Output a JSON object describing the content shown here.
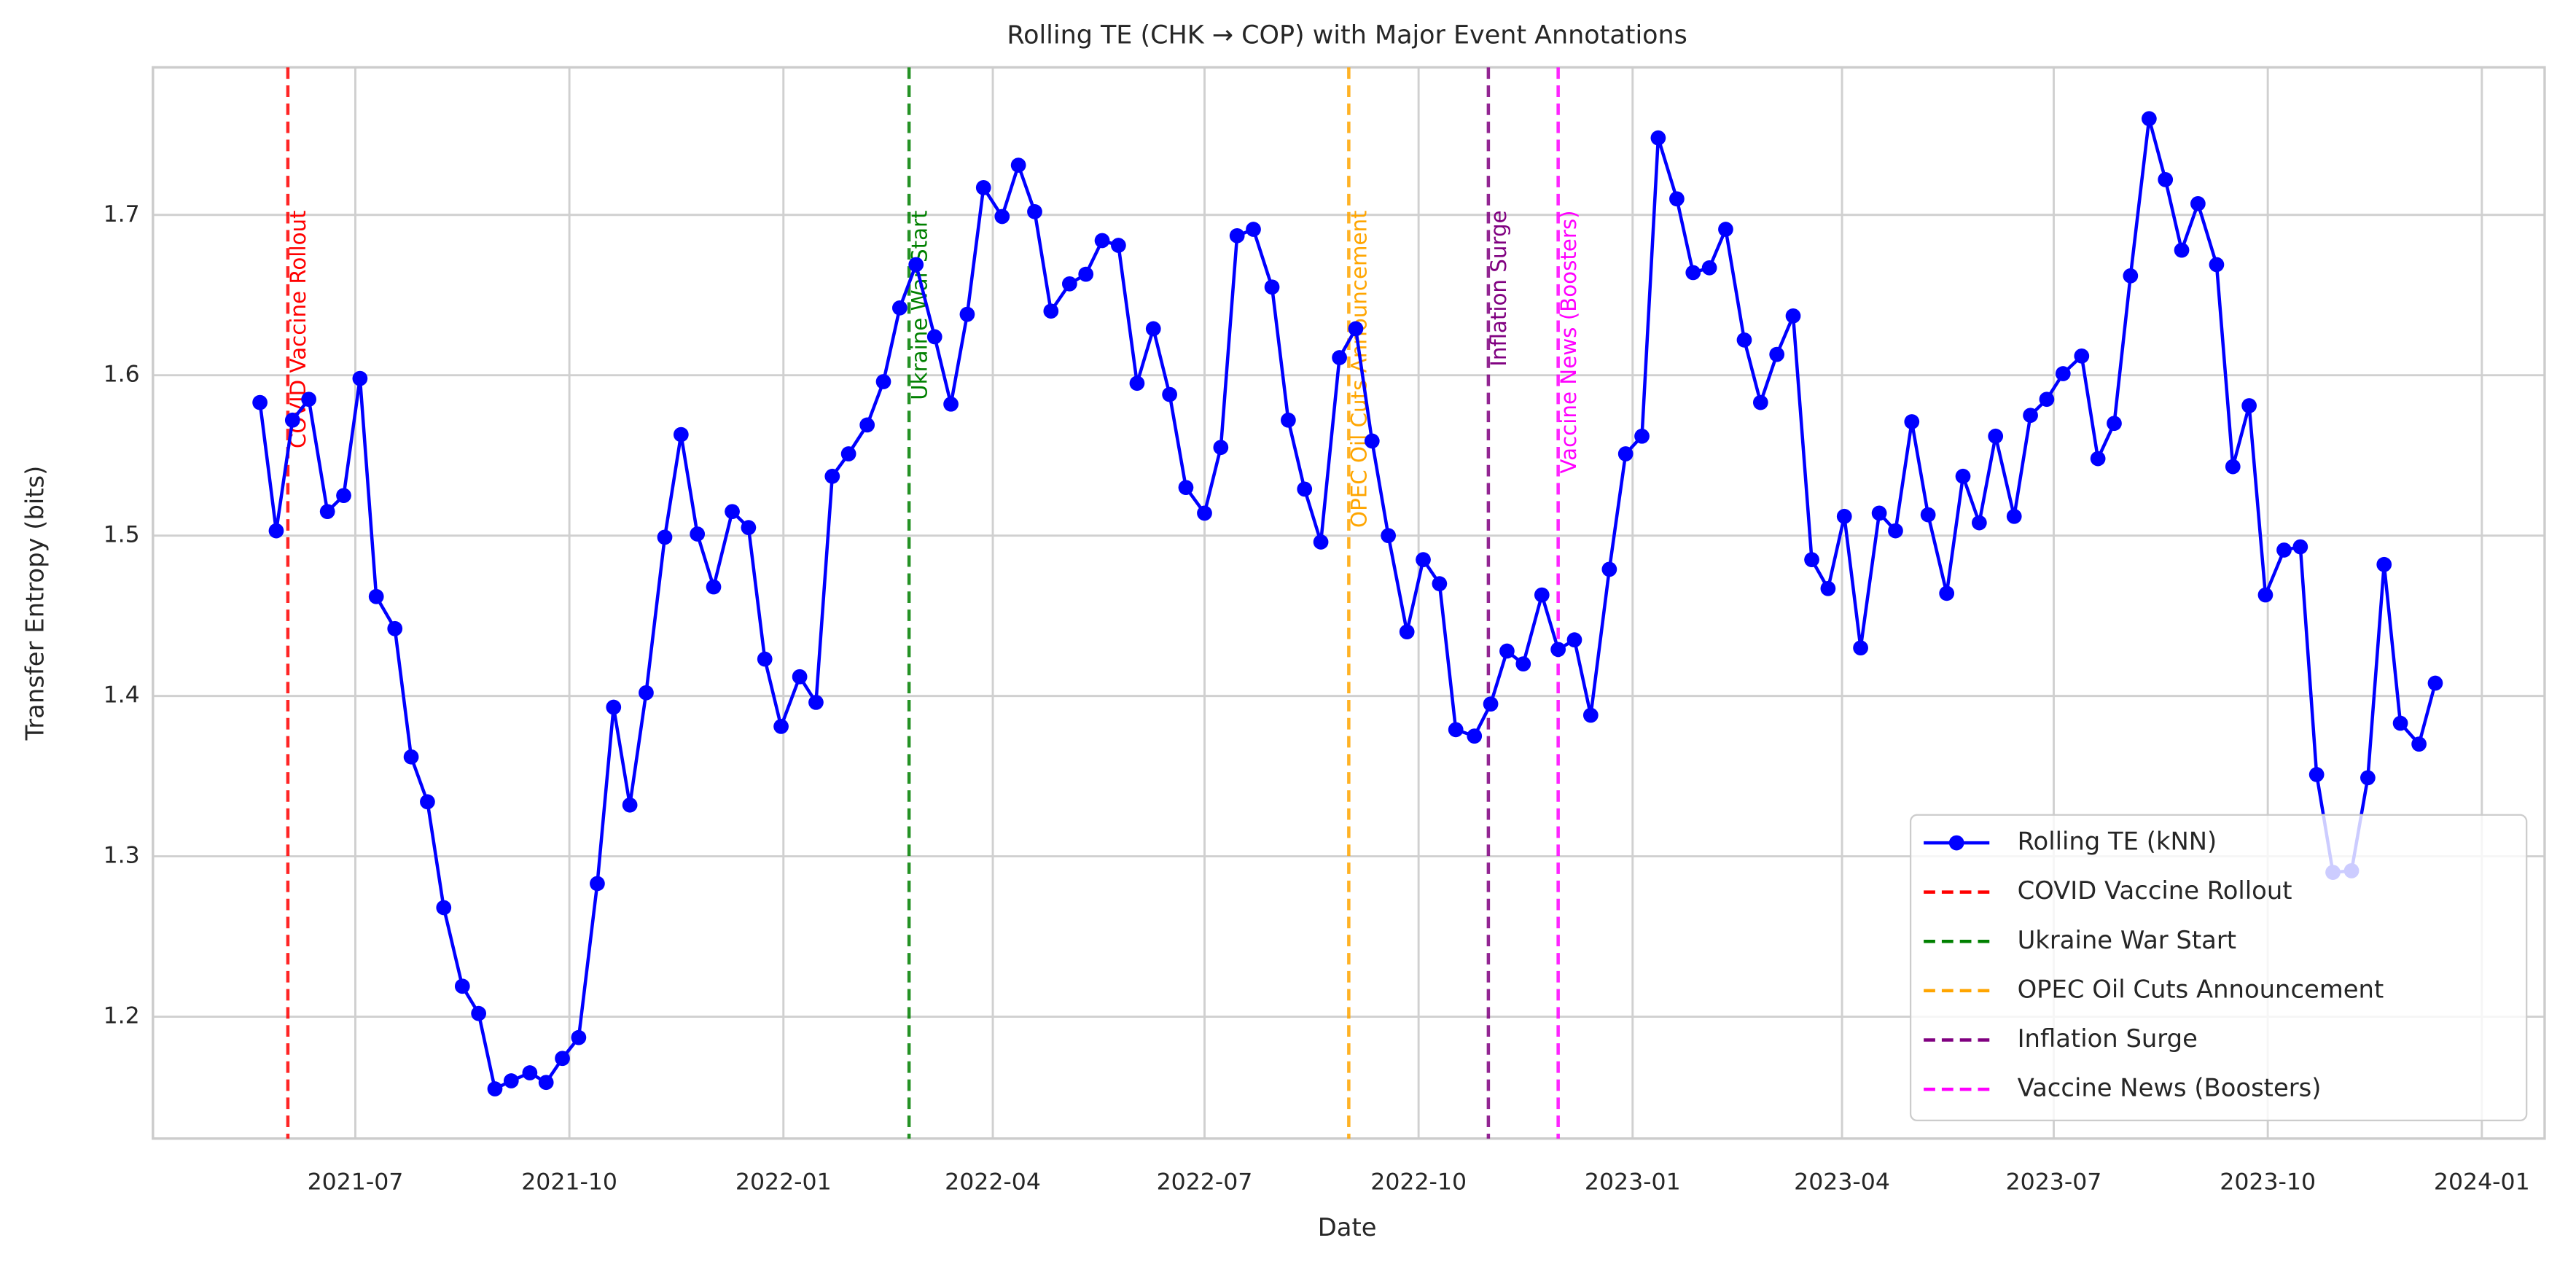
{
  "chart_data": {
    "type": "line",
    "title": "Rolling TE (CHK → COP) with Major Event Annotations",
    "x_label": "Date",
    "y_label": "Transfer Entropy (bits)",
    "grid": true,
    "legend": "lower right",
    "xlim": [
      "2021-04-05",
      "2024-01-28"
    ],
    "xticks": [
      {
        "value": "2021-07-01",
        "label": "2021-07"
      },
      {
        "value": "2021-10-01",
        "label": "2021-10"
      },
      {
        "value": "2022-01-01",
        "label": "2022-01"
      },
      {
        "value": "2022-04-01",
        "label": "2022-04"
      },
      {
        "value": "2022-07-01",
        "label": "2022-07"
      },
      {
        "value": "2022-10-01",
        "label": "2022-10"
      },
      {
        "value": "2023-01-01",
        "label": "2023-01"
      },
      {
        "value": "2023-04-01",
        "label": "2023-04"
      },
      {
        "value": "2023-07-01",
        "label": "2023-07"
      },
      {
        "value": "2023-10-01",
        "label": "2023-10"
      },
      {
        "value": "2024-01-01",
        "label": "2024-01"
      }
    ],
    "ylim": [
      1.124,
      1.792
    ],
    "yticks": [
      1.2,
      1.3,
      1.4,
      1.5,
      1.6,
      1.7
    ],
    "x": [
      "2021-05-21",
      "2021-05-28",
      "2021-06-04",
      "2021-06-11",
      "2021-06-19",
      "2021-06-26",
      "2021-07-03",
      "2021-07-10",
      "2021-07-18",
      "2021-07-25",
      "2021-08-01",
      "2021-08-08",
      "2021-08-16",
      "2021-08-23",
      "2021-08-30",
      "2021-09-06",
      "2021-09-14",
      "2021-09-21",
      "2021-09-28",
      "2021-10-05",
      "2021-10-13",
      "2021-10-20",
      "2021-10-27",
      "2021-11-03",
      "2021-11-11",
      "2021-11-18",
      "2021-11-25",
      "2021-12-02",
      "2021-12-10",
      "2021-12-17",
      "2021-12-24",
      "2021-12-31",
      "2022-01-08",
      "2022-01-15",
      "2022-01-22",
      "2022-01-29",
      "2022-02-06",
      "2022-02-13",
      "2022-02-20",
      "2022-02-27",
      "2022-03-07",
      "2022-03-14",
      "2022-03-21",
      "2022-03-28",
      "2022-04-05",
      "2022-04-12",
      "2022-04-19",
      "2022-04-26",
      "2022-05-04",
      "2022-05-11",
      "2022-05-18",
      "2022-05-25",
      "2022-06-02",
      "2022-06-09",
      "2022-06-16",
      "2022-06-23",
      "2022-07-01",
      "2022-07-08",
      "2022-07-15",
      "2022-07-22",
      "2022-07-30",
      "2022-08-06",
      "2022-08-13",
      "2022-08-20",
      "2022-08-28",
      "2022-09-04",
      "2022-09-11",
      "2022-09-18",
      "2022-09-26",
      "2022-10-03",
      "2022-10-10",
      "2022-10-17",
      "2022-10-25",
      "2022-11-01",
      "2022-11-08",
      "2022-11-15",
      "2022-11-23",
      "2022-11-30",
      "2022-12-07",
      "2022-12-14",
      "2022-12-22",
      "2022-12-29",
      "2023-01-05",
      "2023-01-12",
      "2023-01-20",
      "2023-01-27",
      "2023-02-03",
      "2023-02-10",
      "2023-02-18",
      "2023-02-25",
      "2023-03-04",
      "2023-03-11",
      "2023-03-19",
      "2023-03-26",
      "2023-04-02",
      "2023-04-09",
      "2023-04-17",
      "2023-04-24",
      "2023-05-01",
      "2023-05-08",
      "2023-05-16",
      "2023-05-23",
      "2023-05-30",
      "2023-06-06",
      "2023-06-14",
      "2023-06-21",
      "2023-06-28",
      "2023-07-05",
      "2023-07-13",
      "2023-07-20",
      "2023-07-27",
      "2023-08-03",
      "2023-08-11",
      "2023-08-18",
      "2023-08-25",
      "2023-09-01",
      "2023-09-09",
      "2023-09-16",
      "2023-09-23",
      "2023-09-30",
      "2023-10-08",
      "2023-10-15",
      "2023-10-22",
      "2023-10-29",
      "2023-11-06",
      "2023-11-13",
      "2023-11-20",
      "2023-11-27",
      "2023-12-05",
      "2023-12-12"
    ],
    "series": [
      {
        "name": "Rolling TE (kNN)",
        "color": "#0000ff",
        "values": [
          1.583,
          1.503,
          1.572,
          1.585,
          1.515,
          1.525,
          1.598,
          1.462,
          1.442,
          1.362,
          1.334,
          1.268,
          1.219,
          1.202,
          1.155,
          1.16,
          1.165,
          1.159,
          1.174,
          1.187,
          1.283,
          1.393,
          1.332,
          1.402,
          1.499,
          1.563,
          1.501,
          1.468,
          1.515,
          1.505,
          1.423,
          1.381,
          1.412,
          1.396,
          1.537,
          1.551,
          1.569,
          1.596,
          1.642,
          1.669,
          1.624,
          1.582,
          1.638,
          1.717,
          1.699,
          1.731,
          1.702,
          1.64,
          1.657,
          1.663,
          1.684,
          1.681,
          1.595,
          1.629,
          1.588,
          1.53,
          1.514,
          1.555,
          1.687,
          1.691,
          1.655,
          1.572,
          1.529,
          1.496,
          1.611,
          1.629,
          1.559,
          1.5,
          1.44,
          1.485,
          1.47,
          1.379,
          1.375,
          1.395,
          1.428,
          1.42,
          1.463,
          1.429,
          1.435,
          1.388,
          1.479,
          1.551,
          1.562,
          1.748,
          1.71,
          1.664,
          1.667,
          1.691,
          1.622,
          1.583,
          1.613,
          1.637,
          1.485,
          1.467,
          1.512,
          1.43,
          1.514,
          1.503,
          1.571,
          1.513,
          1.464,
          1.537,
          1.508,
          1.562,
          1.512,
          1.575,
          1.585,
          1.601,
          1.612,
          1.548,
          1.57,
          1.662,
          1.76,
          1.722,
          1.678,
          1.707,
          1.669,
          1.543,
          1.581,
          1.463,
          1.491,
          1.493,
          1.351,
          1.29,
          1.291,
          1.349,
          1.482,
          1.383,
          1.37,
          1.408
        ]
      }
    ],
    "events": [
      {
        "name": "COVID Vaccine Rollout",
        "date": "2021-06-02",
        "color": "#ff0000"
      },
      {
        "name": "Ukraine War Start",
        "date": "2022-02-24",
        "color": "#008000"
      },
      {
        "name": "OPEC Oil Cuts Announcement",
        "date": "2022-09-01",
        "color": "#ffa500"
      },
      {
        "name": "Inflation Surge",
        "date": "2022-10-31",
        "color": "#800080"
      },
      {
        "name": "Vaccine News (Boosters)",
        "date": "2022-11-30",
        "color": "#ff00ff"
      }
    ]
  }
}
